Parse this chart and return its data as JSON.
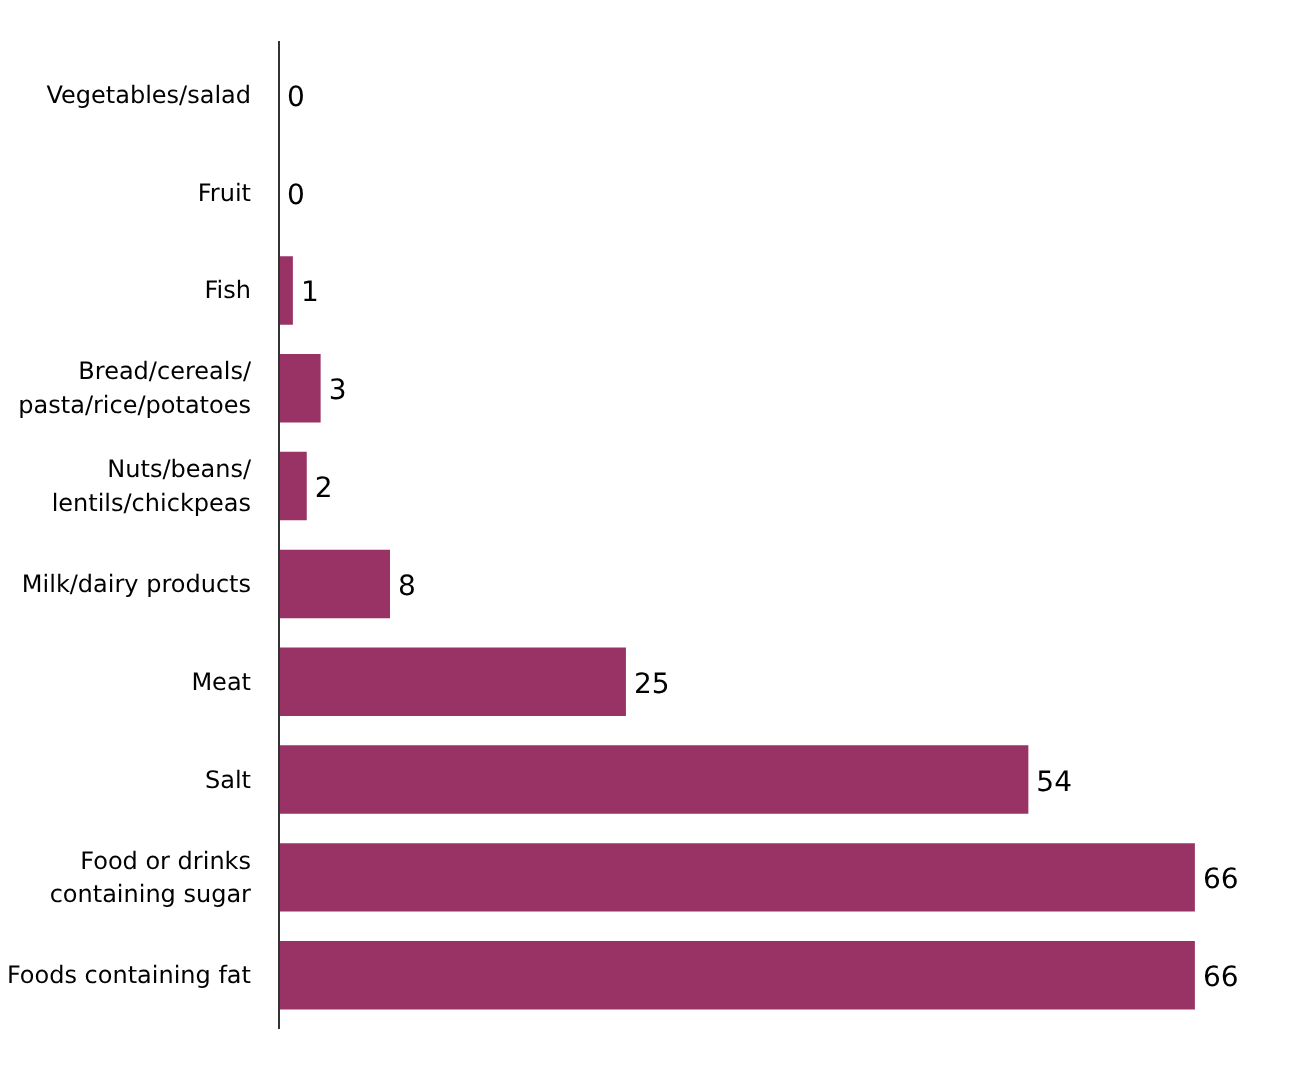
{
  "chart_data": {
    "type": "bar",
    "orientation": "horizontal",
    "categories": [
      "Vegetables/salad",
      "Fruit",
      "Fish",
      "Bread/cereals/\npasta/rice/potatoes",
      "Nuts/beans/\nlentils/chickpeas",
      "Milk/dairy products",
      "Meat",
      "Salt",
      "Food or drinks\ncontaining sugar",
      "Foods containing fat"
    ],
    "values": [
      0,
      0,
      1,
      3,
      2,
      8,
      25,
      54,
      66,
      66
    ],
    "color": "#993366",
    "data_labels": true
  }
}
